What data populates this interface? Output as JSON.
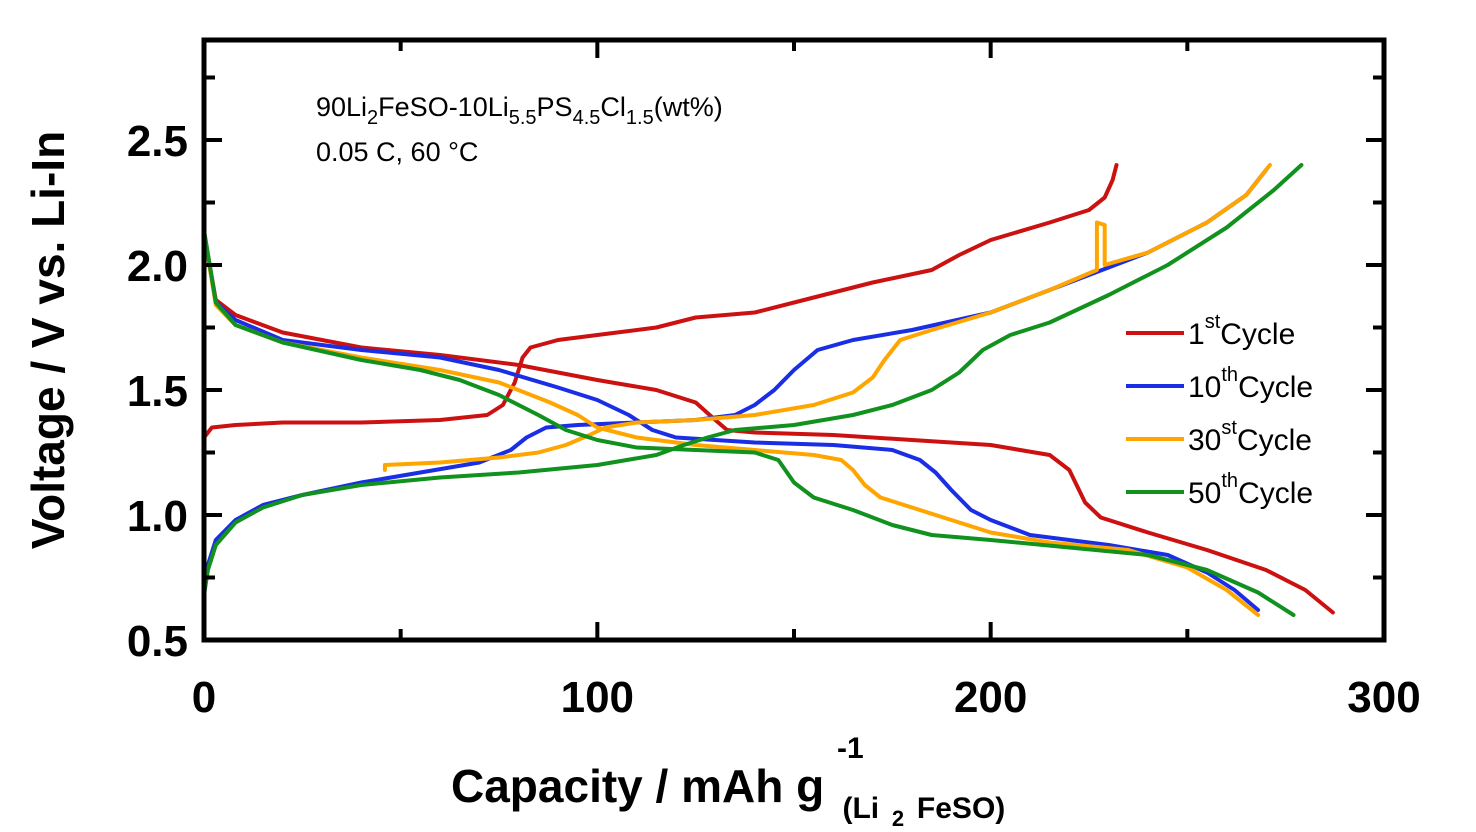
{
  "chart_data": {
    "type": "line",
    "xlabel": {
      "main": "Capacity / mAh g",
      "sup": "-1",
      "sub_pre": "(Li",
      "sub_sub": "2",
      "sub_post": "FeSO)"
    },
    "ylabel": "Voltage / V vs. Li-In",
    "xlim": [
      0,
      300
    ],
    "ylim": [
      0.5,
      2.9
    ],
    "xticks": [
      0,
      100,
      200,
      300
    ],
    "xtick_labels": [
      "0",
      "100",
      "200",
      "300"
    ],
    "yticks": [
      0.5,
      1.0,
      1.5,
      2.0,
      2.5
    ],
    "ytick_labels": [
      "0.5",
      "1.0",
      "1.5",
      "2.0",
      "2.5"
    ],
    "annotation": {
      "line1": [
        {
          "t": "90Li",
          "s": "n"
        },
        {
          "t": "2",
          "s": "sub"
        },
        {
          "t": "FeSO-10Li",
          "s": "n"
        },
        {
          "t": "5.5",
          "s": "sub"
        },
        {
          "t": "PS",
          "s": "n"
        },
        {
          "t": "4.5",
          "s": "sub"
        },
        {
          "t": "Cl",
          "s": "n"
        },
        {
          "t": "1.5",
          "s": "sub"
        },
        {
          "t": "(wt%)",
          "s": "n"
        }
      ],
      "line2": "0.05 C, 60 °C"
    },
    "legend_position": "right",
    "series": [
      {
        "name": "1st Cycle",
        "label_main": "1",
        "label_sup": "st",
        "label_post": "Cycle",
        "color": "#cc1111",
        "charge": [
          [
            0,
            1.31
          ],
          [
            2,
            1.35
          ],
          [
            8,
            1.36
          ],
          [
            20,
            1.37
          ],
          [
            40,
            1.37
          ],
          [
            60,
            1.38
          ],
          [
            72,
            1.4
          ],
          [
            76,
            1.44
          ],
          [
            79,
            1.53
          ],
          [
            81,
            1.63
          ],
          [
            83,
            1.67
          ],
          [
            90,
            1.7
          ],
          [
            105,
            1.73
          ],
          [
            115,
            1.75
          ],
          [
            125,
            1.79
          ],
          [
            140,
            1.81
          ],
          [
            155,
            1.87
          ],
          [
            170,
            1.93
          ],
          [
            185,
            1.98
          ],
          [
            192,
            2.04
          ],
          [
            200,
            2.1
          ],
          [
            215,
            2.17
          ],
          [
            225,
            2.22
          ],
          [
            229,
            2.27
          ],
          [
            231,
            2.34
          ],
          [
            232,
            2.4
          ]
        ],
        "discharge": [
          [
            0,
            2.13
          ],
          [
            3,
            1.86
          ],
          [
            8,
            1.8
          ],
          [
            20,
            1.73
          ],
          [
            40,
            1.67
          ],
          [
            60,
            1.64
          ],
          [
            80,
            1.6
          ],
          [
            100,
            1.54
          ],
          [
            115,
            1.5
          ],
          [
            125,
            1.45
          ],
          [
            130,
            1.38
          ],
          [
            133,
            1.34
          ],
          [
            140,
            1.33
          ],
          [
            160,
            1.32
          ],
          [
            180,
            1.3
          ],
          [
            200,
            1.28
          ],
          [
            215,
            1.24
          ],
          [
            220,
            1.18
          ],
          [
            224,
            1.05
          ],
          [
            228,
            0.99
          ],
          [
            240,
            0.93
          ],
          [
            255,
            0.86
          ],
          [
            270,
            0.78
          ],
          [
            280,
            0.7
          ],
          [
            287,
            0.61
          ]
        ]
      },
      {
        "name": "10th Cycle",
        "label_main": "10",
        "label_sup": "th",
        "label_post": "Cycle",
        "color": "#1a2ee6",
        "charge": [
          [
            0,
            0.68
          ],
          [
            1,
            0.8
          ],
          [
            3,
            0.9
          ],
          [
            8,
            0.98
          ],
          [
            15,
            1.04
          ],
          [
            25,
            1.08
          ],
          [
            40,
            1.13
          ],
          [
            55,
            1.17
          ],
          [
            70,
            1.21
          ],
          [
            78,
            1.26
          ],
          [
            82,
            1.31
          ],
          [
            87,
            1.35
          ],
          [
            95,
            1.36
          ],
          [
            110,
            1.37
          ],
          [
            125,
            1.38
          ],
          [
            135,
            1.4
          ],
          [
            140,
            1.44
          ],
          [
            145,
            1.5
          ],
          [
            150,
            1.58
          ],
          [
            156,
            1.66
          ],
          [
            165,
            1.7
          ],
          [
            180,
            1.74
          ],
          [
            200,
            1.81
          ],
          [
            220,
            1.93
          ],
          [
            240,
            2.05
          ],
          [
            255,
            2.17
          ],
          [
            265,
            2.28
          ],
          [
            270,
            2.38
          ]
        ],
        "discharge": [
          [
            0,
            2.13
          ],
          [
            3,
            1.85
          ],
          [
            8,
            1.78
          ],
          [
            20,
            1.7
          ],
          [
            40,
            1.66
          ],
          [
            60,
            1.63
          ],
          [
            75,
            1.58
          ],
          [
            90,
            1.51
          ],
          [
            100,
            1.46
          ],
          [
            108,
            1.4
          ],
          [
            114,
            1.34
          ],
          [
            120,
            1.31
          ],
          [
            140,
            1.29
          ],
          [
            160,
            1.28
          ],
          [
            175,
            1.26
          ],
          [
            182,
            1.22
          ],
          [
            186,
            1.17
          ],
          [
            190,
            1.1
          ],
          [
            195,
            1.02
          ],
          [
            200,
            0.98
          ],
          [
            210,
            0.92
          ],
          [
            230,
            0.88
          ],
          [
            245,
            0.84
          ],
          [
            255,
            0.77
          ],
          [
            262,
            0.7
          ],
          [
            268,
            0.62
          ]
        ]
      },
      {
        "name": "30st Cycle",
        "label_main": "30",
        "label_sup": "st",
        "label_post": "Cycle",
        "color": "#ffa500",
        "charge": [
          [
            46,
            1.18
          ],
          [
            46,
            1.2
          ],
          [
            60,
            1.21
          ],
          [
            75,
            1.23
          ],
          [
            85,
            1.25
          ],
          [
            92,
            1.28
          ],
          [
            98,
            1.32
          ],
          [
            102,
            1.35
          ],
          [
            110,
            1.37
          ],
          [
            125,
            1.38
          ],
          [
            140,
            1.4
          ],
          [
            155,
            1.44
          ],
          [
            165,
            1.49
          ],
          [
            170,
            1.55
          ],
          [
            173,
            1.62
          ],
          [
            177,
            1.7
          ],
          [
            185,
            1.74
          ],
          [
            200,
            1.81
          ],
          [
            215,
            1.9
          ],
          [
            227,
            1.98
          ],
          [
            227,
            2.17
          ],
          [
            229,
            2.16
          ],
          [
            229,
            2.0
          ],
          [
            240,
            2.05
          ],
          [
            255,
            2.17
          ],
          [
            265,
            2.28
          ],
          [
            271,
            2.4
          ]
        ],
        "discharge": [
          [
            0,
            2.13
          ],
          [
            3,
            1.84
          ],
          [
            8,
            1.76
          ],
          [
            20,
            1.69
          ],
          [
            40,
            1.63
          ],
          [
            60,
            1.58
          ],
          [
            75,
            1.53
          ],
          [
            88,
            1.45
          ],
          [
            95,
            1.4
          ],
          [
            100,
            1.35
          ],
          [
            110,
            1.31
          ],
          [
            125,
            1.28
          ],
          [
            140,
            1.26
          ],
          [
            155,
            1.24
          ],
          [
            162,
            1.22
          ],
          [
            165,
            1.18
          ],
          [
            168,
            1.12
          ],
          [
            172,
            1.07
          ],
          [
            180,
            1.03
          ],
          [
            190,
            0.98
          ],
          [
            200,
            0.93
          ],
          [
            215,
            0.89
          ],
          [
            235,
            0.86
          ],
          [
            250,
            0.79
          ],
          [
            260,
            0.7
          ],
          [
            268,
            0.6
          ]
        ]
      },
      {
        "name": "50th Cycle",
        "label_main": "50",
        "label_sup": "th",
        "label_post": "Cycle",
        "color": "#11911d",
        "charge": [
          [
            0,
            0.68
          ],
          [
            1,
            0.78
          ],
          [
            3,
            0.88
          ],
          [
            8,
            0.97
          ],
          [
            15,
            1.03
          ],
          [
            25,
            1.08
          ],
          [
            40,
            1.12
          ],
          [
            60,
            1.15
          ],
          [
            80,
            1.17
          ],
          [
            100,
            1.2
          ],
          [
            115,
            1.24
          ],
          [
            122,
            1.28
          ],
          [
            128,
            1.31
          ],
          [
            135,
            1.34
          ],
          [
            150,
            1.36
          ],
          [
            165,
            1.4
          ],
          [
            175,
            1.44
          ],
          [
            185,
            1.5
          ],
          [
            192,
            1.57
          ],
          [
            198,
            1.66
          ],
          [
            205,
            1.72
          ],
          [
            215,
            1.77
          ],
          [
            230,
            1.88
          ],
          [
            245,
            2.0
          ],
          [
            260,
            2.15
          ],
          [
            272,
            2.3
          ],
          [
            279,
            2.4
          ]
        ],
        "discharge": [
          [
            0,
            2.14
          ],
          [
            3,
            1.85
          ],
          [
            8,
            1.76
          ],
          [
            20,
            1.69
          ],
          [
            40,
            1.62
          ],
          [
            55,
            1.58
          ],
          [
            65,
            1.54
          ],
          [
            75,
            1.48
          ],
          [
            85,
            1.4
          ],
          [
            92,
            1.34
          ],
          [
            100,
            1.3
          ],
          [
            110,
            1.27
          ],
          [
            125,
            1.26
          ],
          [
            140,
            1.25
          ],
          [
            146,
            1.22
          ],
          [
            150,
            1.13
          ],
          [
            155,
            1.07
          ],
          [
            165,
            1.02
          ],
          [
            175,
            0.96
          ],
          [
            185,
            0.92
          ],
          [
            200,
            0.9
          ],
          [
            220,
            0.87
          ],
          [
            240,
            0.84
          ],
          [
            255,
            0.78
          ],
          [
            268,
            0.69
          ],
          [
            277,
            0.6
          ]
        ]
      }
    ]
  }
}
